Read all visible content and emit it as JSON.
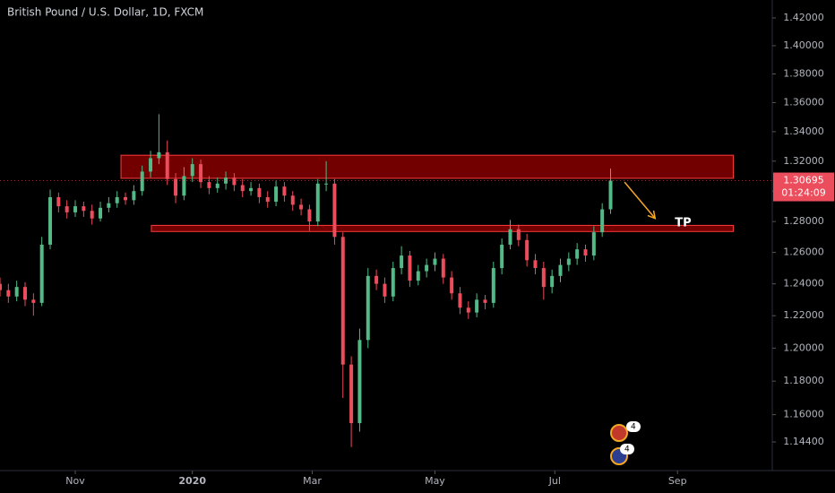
{
  "chart_data": {
    "type": "candlestick",
    "title": "British Pound / U.S. Dollar, 1D, FXCM",
    "up_color": "#53b987",
    "down_color": "#eb4d5c",
    "log_scale": true,
    "x": [
      0,
      3,
      6,
      9,
      12,
      15,
      18,
      21,
      24,
      27,
      30,
      33,
      36,
      39,
      42,
      45,
      48,
      51,
      54,
      57,
      60,
      63,
      66,
      69,
      72,
      75,
      78,
      81,
      84,
      87,
      90,
      93,
      96,
      99,
      102,
      105,
      108,
      111,
      114,
      117,
      120,
      123,
      126,
      129,
      132,
      135,
      138,
      141,
      144,
      147,
      150,
      153,
      156,
      159,
      162,
      165,
      168,
      171,
      174,
      177,
      180,
      183,
      186,
      189,
      192,
      195,
      198,
      201,
      204,
      207,
      210,
      213,
      216,
      219
    ],
    "open": [
      1.24,
      1.236,
      1.232,
      1.238,
      1.23,
      1.228,
      1.265,
      1.296,
      1.29,
      1.286,
      1.29,
      1.287,
      1.282,
      1.289,
      1.292,
      1.296,
      1.294,
      1.3,
      1.313,
      1.322,
      1.326,
      1.308,
      1.297,
      1.31,
      1.318,
      1.306,
      1.302,
      1.305,
      1.309,
      1.304,
      1.3,
      1.302,
      1.296,
      1.293,
      1.303,
      1.297,
      1.291,
      1.288,
      1.28,
      1.305,
      1.305,
      1.27,
      1.19,
      1.155,
      1.205,
      1.245,
      1.24,
      1.232,
      1.25,
      1.258,
      1.242,
      1.248,
      1.252,
      1.256,
      1.244,
      1.234,
      1.225,
      1.222,
      1.23,
      1.228,
      1.25,
      1.265,
      1.275,
      1.268,
      1.255,
      1.25,
      1.238,
      1.245,
      1.252,
      1.256,
      1.262,
      1.258,
      1.273,
      1.288
    ],
    "high": [
      1.244,
      1.24,
      1.242,
      1.241,
      1.234,
      1.27,
      1.301,
      1.299,
      1.294,
      1.294,
      1.293,
      1.291,
      1.293,
      1.296,
      1.3,
      1.299,
      1.304,
      1.317,
      1.327,
      1.352,
      1.334,
      1.312,
      1.316,
      1.322,
      1.321,
      1.31,
      1.309,
      1.313,
      1.312,
      1.308,
      1.306,
      1.305,
      1.3,
      1.307,
      1.306,
      1.3,
      1.295,
      1.291,
      1.308,
      1.32,
      1.308,
      1.273,
      1.195,
      1.212,
      1.25,
      1.249,
      1.244,
      1.254,
      1.264,
      1.261,
      1.252,
      1.256,
      1.26,
      1.259,
      1.248,
      1.238,
      1.229,
      1.234,
      1.233,
      1.254,
      1.269,
      1.281,
      1.278,
      1.272,
      1.259,
      1.254,
      1.249,
      1.256,
      1.26,
      1.266,
      1.265,
      1.277,
      1.292,
      1.315
    ],
    "low": [
      1.232,
      1.228,
      1.229,
      1.226,
      1.22,
      1.226,
      1.262,
      1.286,
      1.282,
      1.283,
      1.283,
      1.278,
      1.28,
      1.286,
      1.289,
      1.291,
      1.291,
      1.297,
      1.309,
      1.318,
      1.304,
      1.292,
      1.294,
      1.306,
      1.302,
      1.298,
      1.299,
      1.301,
      1.3,
      1.296,
      1.297,
      1.292,
      1.289,
      1.29,
      1.293,
      1.287,
      1.284,
      1.274,
      1.277,
      1.3,
      1.265,
      1.17,
      1.141,
      1.15,
      1.2,
      1.236,
      1.228,
      1.229,
      1.246,
      1.238,
      1.239,
      1.244,
      1.248,
      1.24,
      1.23,
      1.221,
      1.218,
      1.219,
      1.224,
      1.225,
      1.246,
      1.262,
      1.264,
      1.251,
      1.246,
      1.23,
      1.234,
      1.241,
      1.248,
      1.252,
      1.254,
      1.255,
      1.27,
      1.285
    ],
    "close": [
      1.236,
      1.232,
      1.238,
      1.23,
      1.228,
      1.265,
      1.296,
      1.29,
      1.286,
      1.29,
      1.287,
      1.282,
      1.289,
      1.292,
      1.296,
      1.294,
      1.3,
      1.313,
      1.322,
      1.326,
      1.308,
      1.297,
      1.31,
      1.318,
      1.306,
      1.302,
      1.305,
      1.309,
      1.304,
      1.3,
      1.302,
      1.296,
      1.293,
      1.303,
      1.297,
      1.291,
      1.288,
      1.28,
      1.305,
      1.305,
      1.27,
      1.19,
      1.155,
      1.205,
      1.245,
      1.24,
      1.232,
      1.25,
      1.258,
      1.242,
      1.248,
      1.252,
      1.256,
      1.244,
      1.234,
      1.225,
      1.222,
      1.23,
      1.228,
      1.25,
      1.265,
      1.275,
      1.268,
      1.255,
      1.25,
      1.238,
      1.245,
      1.252,
      1.256,
      1.262,
      1.258,
      1.273,
      1.288,
      1.30695
    ],
    "xlim": [
      0,
      277
    ],
    "xticks": [
      {
        "value": 27,
        "label": "Nov"
      },
      {
        "value": 69,
        "label": "2020"
      },
      {
        "value": 112,
        "label": "Mar"
      },
      {
        "value": 156,
        "label": "May"
      },
      {
        "value": 199,
        "label": "Jul"
      },
      {
        "value": 243,
        "label": "Sep"
      }
    ],
    "ylim": [
      1.1274,
      1.433
    ],
    "yticks": [
      {
        "value": 1.144,
        "label": "1.14400"
      },
      {
        "value": 1.16,
        "label": "1.16000"
      },
      {
        "value": 1.18,
        "label": "1.18000"
      },
      {
        "value": 1.2,
        "label": "1.20000"
      },
      {
        "value": 1.22,
        "label": "1.22000"
      },
      {
        "value": 1.24,
        "label": "1.24000"
      },
      {
        "value": 1.26,
        "label": "1.26000"
      },
      {
        "value": 1.28,
        "label": "1.28000"
      },
      {
        "value": 1.3,
        "label": "1.30000"
      },
      {
        "value": 1.32,
        "label": "1.32000"
      },
      {
        "value": 1.34,
        "label": "1.34000"
      },
      {
        "value": 1.36,
        "label": "1.36000"
      },
      {
        "value": 1.38,
        "label": "1.38000"
      },
      {
        "value": 1.4,
        "label": "1.40000"
      },
      {
        "value": 1.42,
        "label": "1.42000"
      }
    ],
    "last_price": {
      "value": 1.30695,
      "label": "1.30695",
      "countdown": "01:24:09",
      "color": "#eb4d5c"
    },
    "zones": [
      {
        "top": 1.324,
        "bottom": 1.3085,
        "x_start": 43.4,
        "x_end": 263,
        "color": "#a30000"
      },
      {
        "top": 1.2775,
        "bottom": 1.2735,
        "x_start": 54.3,
        "x_end": 263,
        "color": "#a30000"
      }
    ],
    "arrow": {
      "x_start": 224,
      "y_start": 1.306,
      "x_end": 235,
      "y_end": 1.282,
      "color": "#f5a623"
    },
    "annotations": [
      {
        "text": "TP",
        "x": 245,
        "y": 1.279
      }
    ],
    "events": [
      {
        "count": 4
      },
      {
        "count": 4
      }
    ]
  }
}
